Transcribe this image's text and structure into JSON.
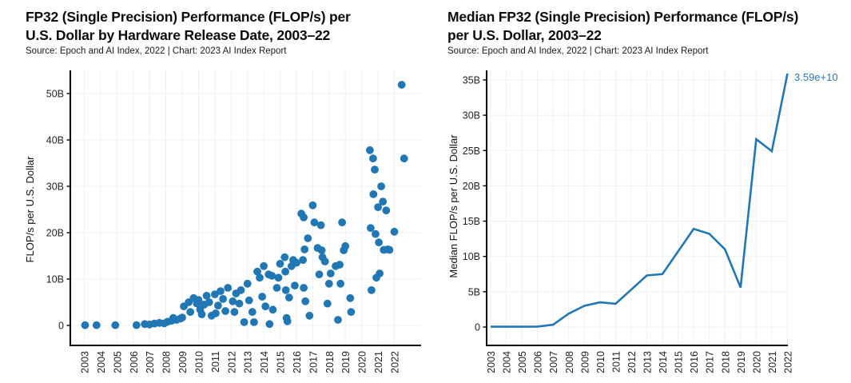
{
  "page": {
    "background": "#ffffff"
  },
  "accent_color": "#2077b4",
  "annotation_color": "#2e79b5",
  "grid_color": "#efefef",
  "axis_color": "#000000",
  "chart_data": [
    {
      "type": "scatter",
      "title_line1": "FP32 (Single Precision) Performance (FLOP/s) per",
      "title_line2": "U.S. Dollar by Hardware Release Date, 2003–22",
      "source": "Source: Epoch and AI Index, 2022 | Chart: 2023 AI Index Report",
      "ylabel": "FLOP/s per U.S. Dollar",
      "x_tick_labels": [
        "2003",
        "2004",
        "2005",
        "2006",
        "2007",
        "2008",
        "2009",
        "2010",
        "2011",
        "2012",
        "2013",
        "2014",
        "2015",
        "2016",
        "2017",
        "2018",
        "2019",
        "2020",
        "2021",
        "2022"
      ],
      "y_ticks": [
        {
          "value": 0,
          "label": "0"
        },
        {
          "value": 10,
          "label": "10B"
        },
        {
          "value": 20,
          "label": "20B"
        },
        {
          "value": 30,
          "label": "30B"
        },
        {
          "value": 40,
          "label": "40B"
        },
        {
          "value": 50,
          "label": "50B"
        }
      ],
      "ylim": [
        0,
        55
      ],
      "units": "billion FLOP/s per U.S. Dollar",
      "points": [
        [
          2003.05,
          0.05
        ],
        [
          2003.75,
          0.06
        ],
        [
          2004.9,
          0.06
        ],
        [
          2006.2,
          0.07
        ],
        [
          2006.7,
          0.3
        ],
        [
          2007.0,
          0.2
        ],
        [
          2007.3,
          0.4
        ],
        [
          2007.6,
          0.55
        ],
        [
          2007.9,
          0.45
        ],
        [
          2008.1,
          0.8
        ],
        [
          2008.35,
          1.0
        ],
        [
          2008.45,
          1.6
        ],
        [
          2008.65,
          1.2
        ],
        [
          2008.9,
          1.5
        ],
        [
          2009.0,
          1.7
        ],
        [
          2009.1,
          4.1
        ],
        [
          2009.4,
          5.0
        ],
        [
          2009.5,
          2.9
        ],
        [
          2009.7,
          5.9
        ],
        [
          2009.9,
          4.7
        ],
        [
          2010.0,
          5.5
        ],
        [
          2010.1,
          3.4
        ],
        [
          2010.2,
          2.4
        ],
        [
          2010.35,
          4.5
        ],
        [
          2010.5,
          6.4
        ],
        [
          2010.65,
          5.0
        ],
        [
          2010.8,
          2.1
        ],
        [
          2011.0,
          6.7
        ],
        [
          2011.05,
          2.6
        ],
        [
          2011.2,
          4.3
        ],
        [
          2011.35,
          7.4
        ],
        [
          2011.5,
          5.7
        ],
        [
          2011.65,
          3.1
        ],
        [
          2011.8,
          8.1
        ],
        [
          2012.1,
          5.2
        ],
        [
          2012.2,
          2.9
        ],
        [
          2012.3,
          6.9
        ],
        [
          2012.5,
          4.7
        ],
        [
          2012.6,
          7.6
        ],
        [
          2012.8,
          0.7
        ],
        [
          2013.0,
          9.0
        ],
        [
          2013.1,
          5.4
        ],
        [
          2013.3,
          2.9
        ],
        [
          2013.4,
          0.7
        ],
        [
          2013.6,
          11.6
        ],
        [
          2013.75,
          10.3
        ],
        [
          2013.9,
          6.2
        ],
        [
          2014.0,
          12.8
        ],
        [
          2014.1,
          4.1
        ],
        [
          2014.3,
          11.0
        ],
        [
          2014.35,
          0.3
        ],
        [
          2014.5,
          10.7
        ],
        [
          2014.55,
          3.4
        ],
        [
          2014.8,
          8.1
        ],
        [
          2014.9,
          10.3
        ],
        [
          2015.0,
          13.3
        ],
        [
          2015.28,
          14.7
        ],
        [
          2015.32,
          11.6
        ],
        [
          2015.35,
          7.6
        ],
        [
          2015.4,
          1.6
        ],
        [
          2015.45,
          0.9
        ],
        [
          2015.55,
          6.0
        ],
        [
          2015.7,
          12.8
        ],
        [
          2015.8,
          14.1
        ],
        [
          2015.9,
          8.6
        ],
        [
          2016.0,
          13.5
        ],
        [
          2016.3,
          24.1
        ],
        [
          2016.45,
          23.3
        ],
        [
          2016.4,
          14.1
        ],
        [
          2016.45,
          8.1
        ],
        [
          2016.5,
          16.4
        ],
        [
          2016.55,
          5.2
        ],
        [
          2016.7,
          18.8
        ],
        [
          2016.8,
          2.1
        ],
        [
          2017.0,
          25.9
        ],
        [
          2017.1,
          22.2
        ],
        [
          2017.3,
          16.7
        ],
        [
          2017.4,
          11.0
        ],
        [
          2017.5,
          21.6
        ],
        [
          2017.55,
          16.2
        ],
        [
          2017.6,
          14.7
        ],
        [
          2017.75,
          13.8
        ],
        [
          2017.9,
          4.7
        ],
        [
          2018.0,
          9.0
        ],
        [
          2018.1,
          11.2
        ],
        [
          2018.4,
          12.8
        ],
        [
          2018.55,
          1.2
        ],
        [
          2018.65,
          13.1
        ],
        [
          2018.7,
          9.0
        ],
        [
          2018.8,
          22.2
        ],
        [
          2018.9,
          16.2
        ],
        [
          2019.0,
          17.1
        ],
        [
          2019.3,
          5.9
        ],
        [
          2019.35,
          2.9
        ],
        [
          2020.5,
          37.8
        ],
        [
          2020.55,
          21.0
        ],
        [
          2020.6,
          7.6
        ],
        [
          2020.7,
          36.0
        ],
        [
          2020.72,
          28.3
        ],
        [
          2020.8,
          33.6
        ],
        [
          2020.85,
          19.7
        ],
        [
          2020.9,
          10.3
        ],
        [
          2021.0,
          25.5
        ],
        [
          2021.05,
          17.9
        ],
        [
          2021.1,
          11.2
        ],
        [
          2021.2,
          30.0
        ],
        [
          2021.3,
          26.7
        ],
        [
          2021.35,
          16.3
        ],
        [
          2021.5,
          24.8
        ],
        [
          2021.6,
          16.4
        ],
        [
          2021.7,
          16.3
        ],
        [
          2022.0,
          20.2
        ],
        [
          2022.45,
          51.9
        ],
        [
          2022.6,
          36.0
        ]
      ]
    },
    {
      "type": "line",
      "title_line1": "Median FP32 (Single Precision) Performance (FLOP/s)",
      "title_line2": "per U.S. Dollar, 2003–22",
      "source": "Source: Epoch and AI Index, 2022 | Chart: 2023 AI Index Report",
      "ylabel": "Median FLOP/s per U.S. Dollar",
      "x_tick_labels": [
        "2003",
        "2004",
        "2005",
        "2006",
        "2007",
        "2008",
        "2009",
        "2010",
        "2011",
        "2012",
        "2013",
        "2014",
        "2015",
        "2016",
        "2017",
        "2018",
        "2019",
        "2020",
        "2021",
        "2022"
      ],
      "x": [
        2003,
        2004,
        2005,
        2006,
        2007,
        2008,
        2009,
        2010,
        2011,
        2012,
        2013,
        2014,
        2015,
        2016,
        2017,
        2018,
        2019,
        2020,
        2021,
        2022
      ],
      "values": [
        0.04,
        0.04,
        0.04,
        0.06,
        0.33,
        1.9,
        3.0,
        3.5,
        3.3,
        5.3,
        7.3,
        7.5,
        10.7,
        13.9,
        13.2,
        11.0,
        5.6,
        26.6,
        24.9,
        35.9
      ],
      "y_ticks": [
        {
          "value": 0,
          "label": "0"
        },
        {
          "value": 5,
          "label": "5B"
        },
        {
          "value": 10,
          "label": "10B"
        },
        {
          "value": 15,
          "label": "15B"
        },
        {
          "value": 20,
          "label": "20B"
        },
        {
          "value": 25,
          "label": "25B"
        },
        {
          "value": 30,
          "label": "30B"
        },
        {
          "value": 35,
          "label": "35B"
        }
      ],
      "ylim": [
        0,
        36
      ],
      "units": "billion FLOP/s per U.S. Dollar",
      "annotation": "3.59e+10"
    }
  ]
}
